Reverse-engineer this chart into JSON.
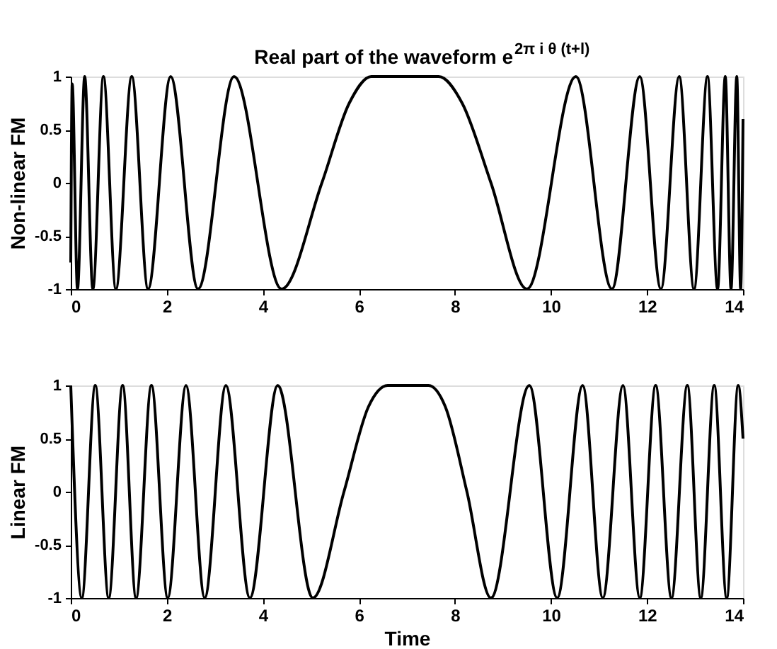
{
  "chart_data": [
    {
      "type": "line",
      "title": "Real part of the waveform e$^{2π i θ (t+l)}$",
      "ylabel": "Non-linear FM",
      "grid": false,
      "line_style": "solid",
      "marker": "none",
      "xlim": [
        0,
        14
      ],
      "ylim": [
        -1,
        1
      ],
      "xticks": [
        0,
        2,
        4,
        6,
        8,
        10,
        12,
        14
      ],
      "yticks": [
        -1,
        -0.5,
        0,
        0.5,
        1
      ],
      "x": [
        0,
        0.03,
        0.14,
        0.29,
        0.46,
        0.68,
        0.94,
        1.27,
        1.61,
        2.08,
        2.65,
        3.4,
        4.39,
        5.23,
        5.8,
        6.26,
        7.66,
        8.15,
        8.75,
        9.5,
        10.52,
        11.27,
        11.85,
        12.29,
        12.67,
        12.98,
        13.26,
        13.47,
        13.63,
        13.75,
        13.87,
        13.95,
        14
      ],
      "series": [
        {
          "color": "#000000",
          "values": [
            -0.75,
            0.93,
            -1,
            1,
            -1,
            1,
            -1,
            1,
            -1,
            1,
            -1,
            1,
            -1,
            0,
            0.75,
            1,
            1,
            0.75,
            0,
            -1,
            1,
            -1,
            1,
            -1,
            1,
            -1,
            1,
            -1,
            1,
            -1,
            1,
            -1,
            0.6
          ]
        }
      ]
    },
    {
      "type": "line",
      "ylabel": "Linear FM",
      "xlabel": "Time",
      "grid": false,
      "line_style": "solid",
      "marker": "none",
      "xlim": [
        0,
        14
      ],
      "ylim": [
        -1,
        1
      ],
      "xticks": [
        0,
        2,
        4,
        6,
        8,
        10,
        12,
        14
      ],
      "yticks": [
        -1,
        -0.5,
        0,
        0.5,
        1
      ],
      "x": [
        0,
        0.23,
        0.51,
        0.79,
        1.08,
        1.36,
        1.68,
        2.02,
        2.4,
        2.79,
        3.23,
        3.73,
        4.31,
        5.04,
        5.69,
        6.2,
        6.6,
        7.45,
        7.8,
        8.25,
        8.75,
        9.55,
        10.13,
        10.66,
        11.08,
        11.5,
        11.85,
        12.18,
        12.51,
        12.84,
        13.12,
        13.4,
        13.66,
        13.9,
        14
      ],
      "series": [
        {
          "color": "#000000",
          "values": [
            1,
            -1,
            1,
            -1,
            1,
            -1,
            1,
            -1,
            1,
            -1,
            1,
            -1,
            1,
            -1,
            0,
            0.8,
            1,
            1,
            0.8,
            0,
            -1,
            1,
            -1,
            1,
            -1,
            1,
            -1,
            1,
            -1,
            1,
            -1,
            1,
            -1,
            1,
            0.5
          ]
        }
      ]
    }
  ]
}
